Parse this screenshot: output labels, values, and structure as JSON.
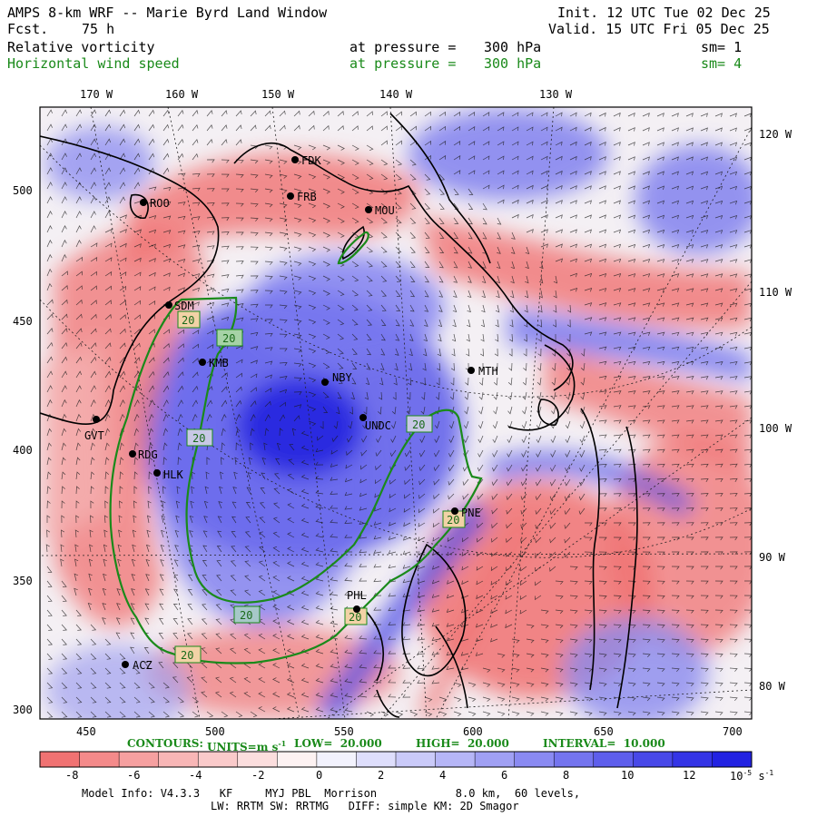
{
  "header": {
    "title": "AMPS 8-km WRF -- Marie Byrd Land Window",
    "init": "Init. 12 UTC Tue 02 Dec 25",
    "fcst_label": "Fcst.",
    "fcst_value": "75 h",
    "valid": "Valid. 15 UTC Fri 05 Dec 25"
  },
  "fields": [
    {
      "name": "Relative vorticity",
      "pressure_label": "at pressure =",
      "pressure_value": "300 hPa",
      "sm": "sm= 1",
      "color": "#000000"
    },
    {
      "name": "Horizontal wind speed",
      "pressure_label": "at pressure =",
      "pressure_value": "300 hPa",
      "sm": "sm= 4",
      "color": "#1a8a1a"
    }
  ],
  "top_lon_labels": [
    "170 W",
    "160 W",
    "150 W",
    "140 W",
    "130 W"
  ],
  "right_lon_labels": [
    "120 W",
    "110 W",
    "100 W",
    "90 W",
    "80 W"
  ],
  "x_ticks": [
    "450",
    "500",
    "550",
    "600",
    "650",
    "700"
  ],
  "y_ticks": [
    "500",
    "450",
    "400",
    "350",
    "300"
  ],
  "stations": [
    "FDK",
    "FRB",
    "MOU",
    "ROO",
    "SDM",
    "KMB",
    "NBY",
    "MTH",
    "UNDC",
    "GVT",
    "RDG",
    "HLK",
    "PNE",
    "PHL",
    "ACZ"
  ],
  "contour_labels": [
    "20",
    "20",
    "20",
    "20",
    "20",
    "20",
    "20",
    "20"
  ],
  "contours_info": {
    "label": "CONTOURS:",
    "units": "UNITS=m s",
    "units_sup": "-1",
    "low": "LOW=  20.000",
    "high": "HIGH=  20.000",
    "interval": "INTERVAL=  10.000"
  },
  "colorbar": {
    "ticks": [
      "-8",
      "-6",
      "-4",
      "-2",
      "0",
      "2",
      "4",
      "6",
      "8",
      "10",
      "12"
    ],
    "unit_prefix": "10",
    "unit_exp": "-5",
    "unit_suffix": "s",
    "unit_suffix_exp": "-1"
  },
  "footer": {
    "line1": "Model Info: V4.3.3   KF     MYJ PBL  Morrison            8.0 km,  60 levels,",
    "line2": "LW: RRTM SW: RRTMG   DIFF: simple KM: 2D Smagor"
  },
  "colors": {
    "positive_red": "#f07272",
    "negative_blue": "#4545e6",
    "contour_green": "#1a8a1a"
  }
}
